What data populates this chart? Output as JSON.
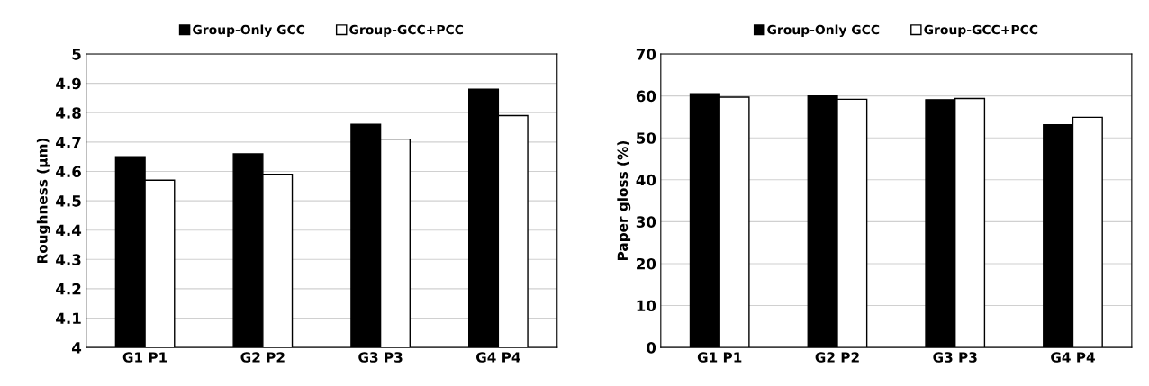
{
  "chart_data": [
    {
      "type": "bar",
      "ylabel": "Roughness (μm)",
      "categories": [
        "G1 P1",
        "G2 P2",
        "G3 P3",
        "G4 P4"
      ],
      "series": [
        {
          "name": "Group-Only GCC",
          "color": "#000000",
          "values": [
            4.65,
            4.66,
            4.76,
            4.88
          ]
        },
        {
          "name": "Group-GCC+PCC",
          "color": "#ffffff",
          "values": [
            4.57,
            4.59,
            4.71,
            4.79
          ]
        }
      ],
      "ylim": [
        4,
        5
      ],
      "yticks": [
        4,
        4.1,
        4.2,
        4.3,
        4.4,
        4.5,
        4.6,
        4.7,
        4.8,
        4.9,
        5
      ],
      "grid": "y",
      "legend": "top"
    },
    {
      "type": "bar",
      "ylabel": "Paper gloss (%)",
      "categories": [
        "G1 P1",
        "G2 P2",
        "G3 P3",
        "G4 P4"
      ],
      "series": [
        {
          "name": "Group-Only GCC",
          "color": "#000000",
          "values": [
            60.5,
            60.0,
            59.1,
            53.1
          ]
        },
        {
          "name": "Group-GCC+PCC",
          "color": "#ffffff",
          "values": [
            59.7,
            59.2,
            59.4,
            54.9
          ]
        }
      ],
      "ylim": [
        0,
        70
      ],
      "yticks": [
        0,
        10,
        20,
        30,
        40,
        50,
        60,
        70
      ],
      "grid": "y",
      "legend": "top"
    }
  ]
}
